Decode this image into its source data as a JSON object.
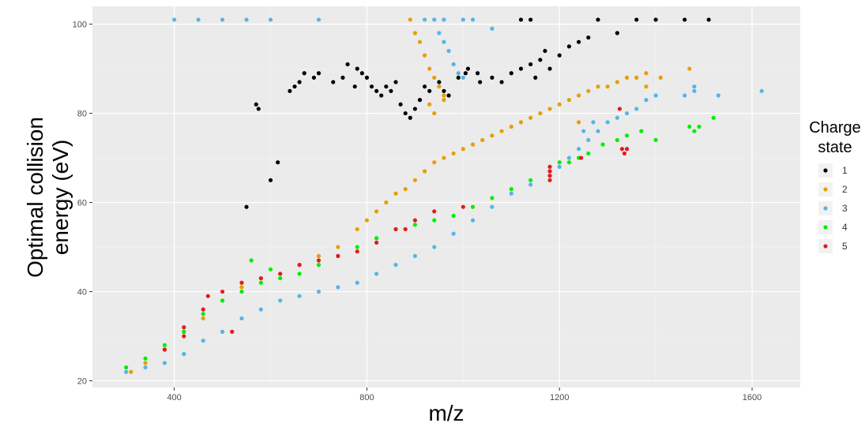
{
  "chart_data": {
    "type": "scatter",
    "xlabel": "m/z",
    "ylabel": "Optimal collision energy (eV)",
    "xlim": [
      230,
      1700
    ],
    "ylim": [
      18.5,
      104
    ],
    "x_ticks": [
      400,
      800,
      1200,
      1600
    ],
    "y_ticks": [
      20,
      40,
      60,
      80,
      100
    ],
    "grid": true,
    "legend": {
      "title": "Charge state",
      "position": "right",
      "entries": [
        {
          "label": "1",
          "color": "#000000"
        },
        {
          "label": "2",
          "color": "#E69F00"
        },
        {
          "label": "3",
          "color": "#56B4E9"
        },
        {
          "label": "4",
          "color": "#00EE00"
        },
        {
          "label": "5",
          "color": "#E41A1C"
        }
      ]
    },
    "series": [
      {
        "name": "1",
        "color": "#000000",
        "points": [
          [
            550,
            59
          ],
          [
            570,
            82
          ],
          [
            575,
            81
          ],
          [
            600,
            65
          ],
          [
            615,
            69
          ],
          [
            640,
            85
          ],
          [
            650,
            86
          ],
          [
            660,
            87
          ],
          [
            670,
            89
          ],
          [
            690,
            88
          ],
          [
            700,
            89
          ],
          [
            730,
            87
          ],
          [
            750,
            88
          ],
          [
            780,
            90
          ],
          [
            790,
            89
          ],
          [
            800,
            88
          ],
          [
            810,
            86
          ],
          [
            820,
            85
          ],
          [
            830,
            84
          ],
          [
            840,
            86
          ],
          [
            850,
            85
          ],
          [
            860,
            87
          ],
          [
            870,
            82
          ],
          [
            880,
            80
          ],
          [
            890,
            79
          ],
          [
            900,
            81
          ],
          [
            910,
            83
          ],
          [
            920,
            86
          ],
          [
            930,
            85
          ],
          [
            950,
            87
          ],
          [
            970,
            84
          ],
          [
            990,
            88
          ],
          [
            1010,
            90
          ],
          [
            1030,
            89
          ],
          [
            1060,
            88
          ],
          [
            1080,
            87
          ],
          [
            1100,
            89
          ],
          [
            1120,
            90
          ],
          [
            1140,
            91
          ],
          [
            1150,
            88
          ],
          [
            1160,
            92
          ],
          [
            1180,
            90
          ],
          [
            1200,
            93
          ],
          [
            1220,
            95
          ],
          [
            1240,
            96
          ],
          [
            1260,
            97
          ],
          [
            1280,
            101
          ],
          [
            1320,
            98
          ],
          [
            1360,
            101
          ],
          [
            1400,
            101
          ],
          [
            1460,
            101
          ],
          [
            1510,
            101
          ],
          [
            1140,
            101
          ],
          [
            1120,
            101
          ],
          [
            760,
            91
          ],
          [
            775,
            86
          ],
          [
            960,
            85
          ],
          [
            1005,
            89
          ],
          [
            1035,
            87
          ],
          [
            1170,
            94
          ]
        ]
      },
      {
        "name": "2",
        "color": "#E69F00",
        "points": [
          [
            310,
            22
          ],
          [
            340,
            24
          ],
          [
            380,
            27
          ],
          [
            420,
            31
          ],
          [
            460,
            34
          ],
          [
            500,
            38
          ],
          [
            540,
            41
          ],
          [
            580,
            43
          ],
          [
            620,
            44
          ],
          [
            660,
            46
          ],
          [
            700,
            48
          ],
          [
            740,
            50
          ],
          [
            780,
            54
          ],
          [
            800,
            56
          ],
          [
            820,
            58
          ],
          [
            840,
            60
          ],
          [
            860,
            62
          ],
          [
            880,
            63
          ],
          [
            900,
            65
          ],
          [
            920,
            67
          ],
          [
            940,
            69
          ],
          [
            960,
            70
          ],
          [
            980,
            71
          ],
          [
            1000,
            72
          ],
          [
            1020,
            73
          ],
          [
            1040,
            74
          ],
          [
            1060,
            75
          ],
          [
            1080,
            76
          ],
          [
            1100,
            77
          ],
          [
            1120,
            78
          ],
          [
            1140,
            79
          ],
          [
            1160,
            80
          ],
          [
            1180,
            81
          ],
          [
            1200,
            82
          ],
          [
            1220,
            83
          ],
          [
            1240,
            84
          ],
          [
            1260,
            85
          ],
          [
            1280,
            86
          ],
          [
            1300,
            86
          ],
          [
            1320,
            87
          ],
          [
            1340,
            88
          ],
          [
            1360,
            88
          ],
          [
            1380,
            89
          ],
          [
            1410,
            88
          ],
          [
            1470,
            90
          ],
          [
            890,
            101
          ],
          [
            900,
            98
          ],
          [
            910,
            96
          ],
          [
            920,
            93
          ],
          [
            930,
            90
          ],
          [
            940,
            88
          ],
          [
            950,
            86
          ],
          [
            960,
            84
          ],
          [
            930,
            82
          ],
          [
            940,
            80
          ],
          [
            960,
            83
          ],
          [
            1240,
            78
          ],
          [
            1380,
            86
          ]
        ]
      },
      {
        "name": "3",
        "color": "#56B4E9",
        "points": [
          [
            300,
            22
          ],
          [
            340,
            23
          ],
          [
            380,
            24
          ],
          [
            420,
            26
          ],
          [
            460,
            29
          ],
          [
            500,
            31
          ],
          [
            540,
            34
          ],
          [
            580,
            36
          ],
          [
            620,
            38
          ],
          [
            660,
            39
          ],
          [
            700,
            40
          ],
          [
            740,
            41
          ],
          [
            780,
            42
          ],
          [
            820,
            44
          ],
          [
            860,
            46
          ],
          [
            900,
            48
          ],
          [
            940,
            50
          ],
          [
            980,
            53
          ],
          [
            1020,
            56
          ],
          [
            1060,
            59
          ],
          [
            1100,
            62
          ],
          [
            1140,
            64
          ],
          [
            1180,
            66
          ],
          [
            1200,
            68
          ],
          [
            1220,
            70
          ],
          [
            1240,
            72
          ],
          [
            1260,
            74
          ],
          [
            1280,
            76
          ],
          [
            1300,
            78
          ],
          [
            1320,
            79
          ],
          [
            1340,
            80
          ],
          [
            1360,
            81
          ],
          [
            1380,
            83
          ],
          [
            1400,
            84
          ],
          [
            1480,
            85
          ],
          [
            1530,
            84
          ],
          [
            1620,
            85
          ],
          [
            1460,
            84
          ],
          [
            1480,
            86
          ],
          [
            1250,
            76
          ],
          [
            1270,
            78
          ],
          [
            400,
            101
          ],
          [
            450,
            101
          ],
          [
            500,
            101
          ],
          [
            550,
            101
          ],
          [
            600,
            101
          ],
          [
            700,
            101
          ],
          [
            920,
            101
          ],
          [
            940,
            101
          ],
          [
            960,
            101
          ],
          [
            1000,
            101
          ],
          [
            1020,
            101
          ],
          [
            950,
            98
          ],
          [
            960,
            96
          ],
          [
            970,
            94
          ],
          [
            980,
            91
          ],
          [
            990,
            89
          ],
          [
            1000,
            88
          ],
          [
            1060,
            99
          ]
        ]
      },
      {
        "name": "4",
        "color": "#00EE00",
        "points": [
          [
            300,
            23
          ],
          [
            340,
            25
          ],
          [
            380,
            28
          ],
          [
            420,
            31
          ],
          [
            460,
            35
          ],
          [
            500,
            38
          ],
          [
            540,
            40
          ],
          [
            580,
            42
          ],
          [
            620,
            43
          ],
          [
            660,
            44
          ],
          [
            700,
            46
          ],
          [
            740,
            48
          ],
          [
            780,
            50
          ],
          [
            820,
            52
          ],
          [
            860,
            54
          ],
          [
            900,
            55
          ],
          [
            940,
            56
          ],
          [
            980,
            57
          ],
          [
            1020,
            59
          ],
          [
            1060,
            61
          ],
          [
            1100,
            63
          ],
          [
            1140,
            65
          ],
          [
            1180,
            67
          ],
          [
            1220,
            69
          ],
          [
            1240,
            70
          ],
          [
            1260,
            71
          ],
          [
            1290,
            73
          ],
          [
            1320,
            74
          ],
          [
            1340,
            75
          ],
          [
            1370,
            76
          ],
          [
            1470,
            77
          ],
          [
            1480,
            76
          ],
          [
            1490,
            77
          ],
          [
            1520,
            79
          ],
          [
            1400,
            74
          ],
          [
            1200,
            69
          ],
          [
            560,
            47
          ],
          [
            600,
            45
          ]
        ]
      },
      {
        "name": "5",
        "color": "#E41A1C",
        "points": [
          [
            380,
            27
          ],
          [
            420,
            32
          ],
          [
            460,
            36
          ],
          [
            500,
            40
          ],
          [
            540,
            42
          ],
          [
            580,
            43
          ],
          [
            620,
            44
          ],
          [
            660,
            46
          ],
          [
            700,
            47
          ],
          [
            740,
            48
          ],
          [
            780,
            49
          ],
          [
            820,
            51
          ],
          [
            860,
            54
          ],
          [
            900,
            56
          ],
          [
            940,
            58
          ],
          [
            1000,
            59
          ],
          [
            1180,
            65
          ],
          [
            1180,
            66
          ],
          [
            1180,
            67
          ],
          [
            1180,
            68
          ],
          [
            1330,
            72
          ],
          [
            1335,
            71
          ],
          [
            1340,
            72
          ],
          [
            1245,
            70
          ],
          [
            1325,
            81
          ],
          [
            420,
            30
          ],
          [
            520,
            31
          ],
          [
            470,
            39
          ],
          [
            880,
            54
          ]
        ]
      }
    ]
  }
}
